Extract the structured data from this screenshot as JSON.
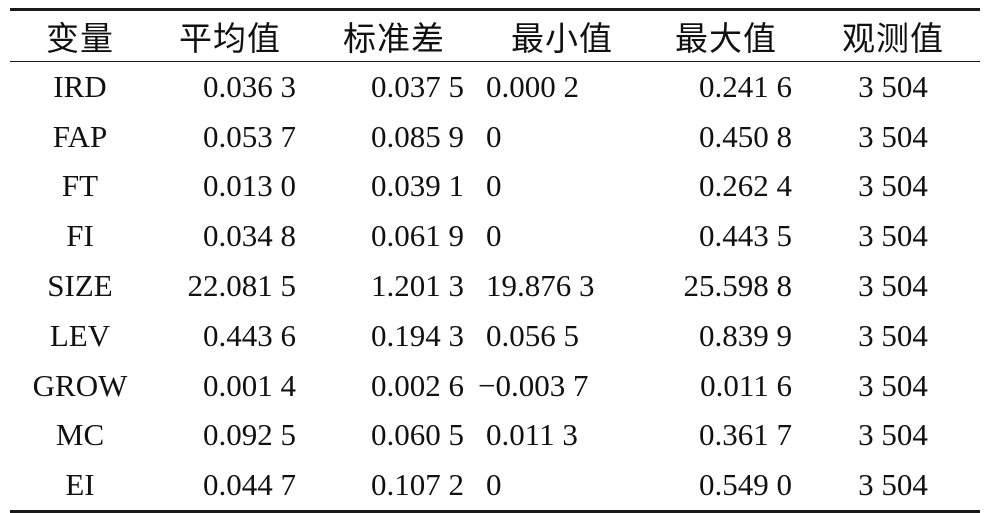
{
  "table": {
    "headers": [
      "变量",
      "平均值",
      "标准差",
      "最小值",
      "最大值",
      "观测值"
    ],
    "rows": [
      {
        "var": "IRD",
        "mean": "0.036 3",
        "std": "0.037 5",
        "min": "0.000 2",
        "max": "0.241 6",
        "obs": "3 504"
      },
      {
        "var": "FAP",
        "mean": "0.053 7",
        "std": "0.085 9",
        "min": "0",
        "max": "0.450 8",
        "obs": "3 504"
      },
      {
        "var": "FT",
        "mean": "0.013 0",
        "std": "0.039 1",
        "min": "0",
        "max": "0.262 4",
        "obs": "3 504"
      },
      {
        "var": "FI",
        "mean": "0.034 8",
        "std": "0.061 9",
        "min": "0",
        "max": "0.443 5",
        "obs": "3 504"
      },
      {
        "var": "SIZE",
        "mean": "22.081 5",
        "std": "1.201 3",
        "min": "19.876 3",
        "max": "25.598 8",
        "obs": "3 504"
      },
      {
        "var": "LEV",
        "mean": "0.443 6",
        "std": "0.194 3",
        "min": "0.056 5",
        "max": "0.839 9",
        "obs": "3 504"
      },
      {
        "var": "GROW",
        "mean": "0.001 4",
        "std": "0.002 6",
        "min": "−0.003 7",
        "max": "0.011 6",
        "obs": "3 504"
      },
      {
        "var": "MC",
        "mean": "0.092 5",
        "std": "0.060 5",
        "min": "0.011 3",
        "max": "0.361 7",
        "obs": "3 504"
      },
      {
        "var": "EI",
        "mean": "0.044 7",
        "std": "0.107 2",
        "min": "0",
        "max": "0.549 0",
        "obs": "3 504"
      }
    ]
  }
}
